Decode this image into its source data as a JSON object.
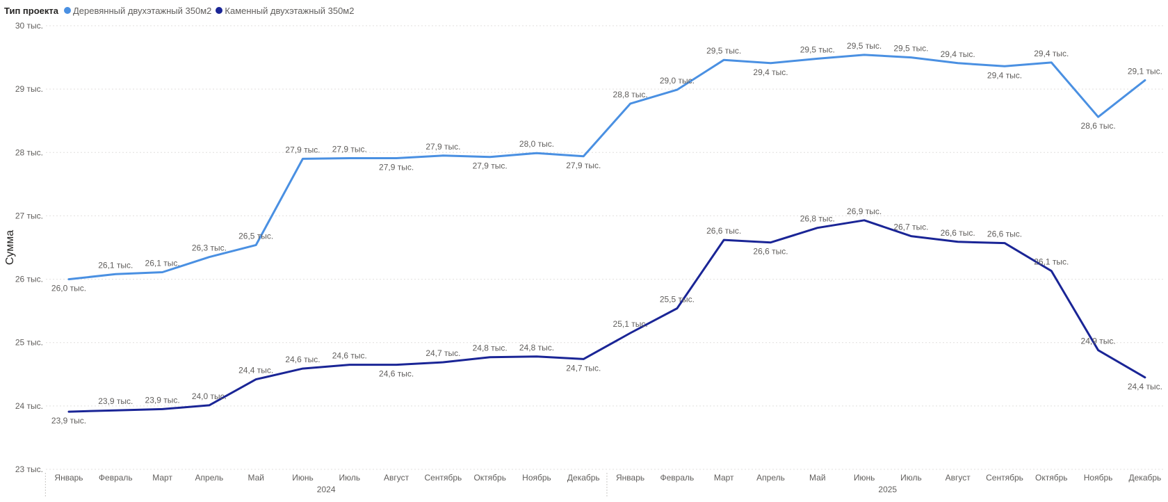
{
  "legend": {
    "title": "Тип проекта",
    "items": [
      {
        "label": "Деревянный двухэтажный 350м2",
        "color": "#4a90e2"
      },
      {
        "label": "Каменный двухэтажный 350м2",
        "color": "#1a2596"
      }
    ]
  },
  "chart_data": {
    "type": "line",
    "title": "",
    "xlabel": "",
    "ylabel": "Сумма",
    "ylim": [
      23,
      30
    ],
    "y_ticks": [
      {
        "value": 23,
        "label": "23 тыс."
      },
      {
        "value": 24,
        "label": "24 тыс."
      },
      {
        "value": 25,
        "label": "25 тыс."
      },
      {
        "value": 26,
        "label": "26 тыс."
      },
      {
        "value": 27,
        "label": "27 тыс."
      },
      {
        "value": 28,
        "label": "28 тыс."
      },
      {
        "value": 29,
        "label": "29 тыс."
      },
      {
        "value": 30,
        "label": "30 тыс."
      }
    ],
    "grid": true,
    "legend_position": "top-left",
    "categories": [
      "Январь",
      "Февраль",
      "Март",
      "Апрель",
      "Май",
      "Июнь",
      "Июль",
      "Август",
      "Сентябрь",
      "Октябрь",
      "Ноябрь",
      "Декабрь",
      "Январь",
      "Февраль",
      "Март",
      "Апрель",
      "Май",
      "Июнь",
      "Июль",
      "Август",
      "Сентябрь",
      "Октябрь",
      "Ноябрь",
      "Декабрь"
    ],
    "year_groups": [
      {
        "label": "2024",
        "start": 0,
        "end": 11
      },
      {
        "label": "2025",
        "start": 12,
        "end": 23
      }
    ],
    "series": [
      {
        "name": "Деревянный двухэтажный 350м2",
        "color": "#4a90e2",
        "values": [
          26.0,
          26.08,
          26.11,
          26.35,
          26.54,
          27.9,
          27.91,
          27.91,
          27.95,
          27.93,
          27.99,
          27.94,
          28.77,
          28.99,
          29.46,
          29.41,
          29.48,
          29.54,
          29.5,
          29.41,
          29.36,
          29.42,
          28.56,
          29.14
        ],
        "labels": [
          "26,0 тыс.",
          "26,1 тыс.",
          "26,1 тыс.",
          "26,3 тыс.",
          "26,5 тыс.",
          "27,9 тыс.",
          "27,9 тыс.",
          "27,9 тыс.",
          "27,9 тыс.",
          "27,9 тыс.",
          "28,0 тыс.",
          "27,9 тыс.",
          "28,8 тыс.",
          "29,0 тыс.",
          "29,5 тыс.",
          "29,4 тыс.",
          "29,5 тыс.",
          "29,5 тыс.",
          "29,5 тыс.",
          "29,4 тыс.",
          "29,4 тыс.",
          "29,4 тыс.",
          "28,6 тыс.",
          "29,1 тыс."
        ],
        "label_pos": [
          "below",
          "above",
          "above",
          "above",
          "above",
          "above",
          "above",
          "below",
          "above",
          "below",
          "above",
          "below",
          "above",
          "above",
          "above",
          "below",
          "above",
          "above",
          "above",
          "above",
          "below",
          "above",
          "below",
          "above"
        ]
      },
      {
        "name": "Каменный двухэтажный 350м2",
        "color": "#1a2596",
        "values": [
          23.91,
          23.93,
          23.95,
          24.01,
          24.42,
          24.59,
          24.65,
          24.65,
          24.69,
          24.77,
          24.78,
          24.74,
          25.15,
          25.54,
          26.62,
          26.58,
          26.81,
          26.93,
          26.68,
          26.59,
          26.57,
          26.13,
          24.88,
          24.45
        ],
        "labels": [
          "23,9 тыс.",
          "23,9 тыс.",
          "23,9 тыс.",
          "24,0 тыс.",
          "24,4 тыс.",
          "24,6 тыс.",
          "24,6 тыс.",
          "24,6 тыс.",
          "24,7 тыс.",
          "24,8 тыс.",
          "24,8 тыс.",
          "24,7 тыс.",
          "25,1 тыс.",
          "25,5 тыс.",
          "26,6 тыс.",
          "26,6 тыс.",
          "26,8 тыс.",
          "26,9 тыс.",
          "26,7 тыс.",
          "26,6 тыс.",
          "26,6 тыс.",
          "26,1 тыс.",
          "24,9 тыс.",
          "24,4 тыс."
        ],
        "label_pos": [
          "below",
          "above",
          "above",
          "above",
          "above",
          "above",
          "above",
          "below",
          "above",
          "above",
          "above",
          "below",
          "above",
          "above",
          "above",
          "below",
          "above",
          "above",
          "above",
          "above",
          "above",
          "above",
          "above",
          "below"
        ]
      }
    ]
  }
}
